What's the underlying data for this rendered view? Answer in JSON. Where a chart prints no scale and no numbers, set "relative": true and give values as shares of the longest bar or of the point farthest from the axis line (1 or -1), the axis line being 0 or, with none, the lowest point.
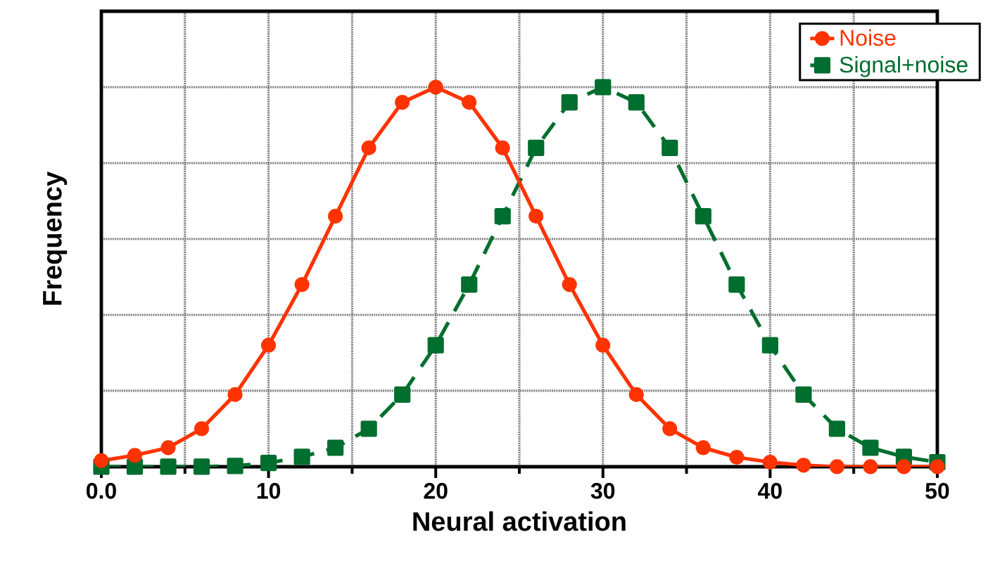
{
  "chart_data": {
    "type": "line",
    "xlabel": "Neural activation",
    "ylabel": "Frequency",
    "relative": true,
    "x": [
      0,
      2,
      4,
      6,
      8,
      10,
      12,
      14,
      16,
      18,
      20,
      22,
      24,
      26,
      28,
      30,
      32,
      34,
      36,
      38,
      40,
      42,
      44,
      46,
      48,
      50
    ],
    "xlim": [
      0,
      50
    ],
    "xticks": [
      {
        "value": 0,
        "label": "0.0"
      },
      10,
      20,
      30,
      40,
      50
    ],
    "grid": true,
    "legend": "top right",
    "series": [
      {
        "name": "Noise",
        "color": "#ff3300",
        "marker": "circle",
        "line_style": "solid",
        "values": [
          0.016,
          0.03,
          0.05,
          0.1,
          0.19,
          0.32,
          0.48,
          0.66,
          0.84,
          0.96,
          1,
          0.96,
          0.84,
          0.66,
          0.48,
          0.32,
          0.19,
          0.1,
          0.05,
          0.025,
          0.012,
          0.004,
          0,
          0,
          0,
          0
        ]
      },
      {
        "name": "Signal+noise",
        "color": "#006e2e",
        "marker": "square",
        "line_style": "dashed",
        "values": [
          0,
          0,
          0,
          0,
          0.002,
          0.01,
          0.026,
          0.05,
          0.1,
          0.19,
          0.32,
          0.48,
          0.66,
          0.84,
          0.96,
          1,
          0.96,
          0.84,
          0.66,
          0.48,
          0.32,
          0.19,
          0.1,
          0.05,
          0.026,
          0.012
        ]
      }
    ]
  }
}
